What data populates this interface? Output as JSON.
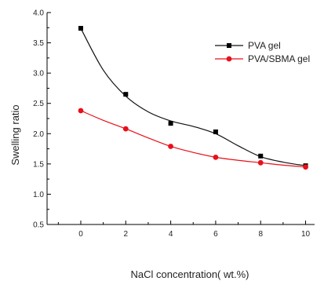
{
  "chart_data": {
    "type": "line",
    "xlabel": "NaCl concentration( wt.%)",
    "ylabel": "Swelling ratio",
    "xlim": [
      -1.5,
      10.4
    ],
    "ylim": [
      0.5,
      4.0
    ],
    "xticks": [
      0,
      2,
      4,
      6,
      8,
      10
    ],
    "xtick_labels": [
      "0",
      "2",
      "4",
      "6",
      "8",
      "10"
    ],
    "yticks": [
      0.5,
      1.0,
      1.5,
      2.0,
      2.5,
      3.0,
      3.5,
      4.0
    ],
    "ytick_labels": [
      "0.5",
      "1.0",
      "1.5",
      "2.0",
      "2.5",
      "3.0",
      "3.5",
      "4.0"
    ],
    "grid": false,
    "legend_position": "top-right",
    "series": [
      {
        "name": "PVA gel",
        "marker": "square",
        "color": "#000000",
        "line_color": "#111111",
        "x": [
          0,
          2,
          4,
          6,
          8,
          10
        ],
        "y": [
          3.74,
          2.65,
          2.17,
          2.03,
          1.63,
          1.47
        ],
        "fit_x": [
          0,
          1,
          2,
          3,
          4,
          5,
          6,
          7,
          8,
          9,
          10
        ],
        "fit_y": [
          3.74,
          3.05,
          2.62,
          2.36,
          2.21,
          2.12,
          2.0,
          1.8,
          1.62,
          1.53,
          1.47
        ]
      },
      {
        "name": "PVA/SBMA gel",
        "marker": "circle",
        "color": "#e8101a",
        "line_color": "#e8101a",
        "x": [
          0,
          2,
          4,
          6,
          8,
          10
        ],
        "y": [
          2.38,
          2.08,
          1.79,
          1.61,
          1.52,
          1.45
        ],
        "fit_x": [
          0,
          1,
          2,
          3,
          4,
          5,
          6,
          7,
          8,
          9,
          10
        ],
        "fit_y": [
          2.38,
          2.22,
          2.08,
          1.93,
          1.79,
          1.69,
          1.61,
          1.56,
          1.52,
          1.48,
          1.45
        ]
      }
    ]
  }
}
